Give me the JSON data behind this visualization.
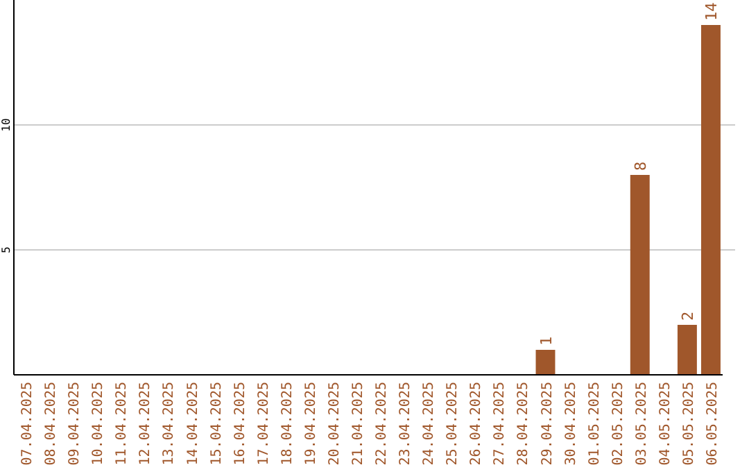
{
  "chart_data": {
    "type": "bar",
    "categories": [
      "07.04.2025",
      "08.04.2025",
      "09.04.2025",
      "10.04.2025",
      "11.04.2025",
      "12.04.2025",
      "13.04.2025",
      "14.04.2025",
      "15.04.2025",
      "16.04.2025",
      "17.04.2025",
      "18.04.2025",
      "19.04.2025",
      "20.04.2025",
      "21.04.2025",
      "22.04.2025",
      "23.04.2025",
      "24.04.2025",
      "25.04.2025",
      "26.04.2025",
      "27.04.2025",
      "28.04.2025",
      "29.04.2025",
      "30.04.2025",
      "01.05.2025",
      "02.05.2025",
      "03.05.2025",
      "04.05.2025",
      "05.05.2025",
      "06.05.2025"
    ],
    "values": [
      0,
      0,
      0,
      0,
      0,
      0,
      0,
      0,
      0,
      0,
      0,
      0,
      0,
      0,
      0,
      0,
      0,
      0,
      0,
      0,
      0,
      0,
      1,
      0,
      0,
      0,
      8,
      0,
      2,
      14
    ],
    "value_labels": [
      null,
      null,
      null,
      null,
      null,
      null,
      null,
      null,
      null,
      null,
      null,
      null,
      null,
      null,
      null,
      null,
      null,
      null,
      null,
      null,
      null,
      null,
      "1",
      null,
      null,
      null,
      "8",
      null,
      "2",
      "14"
    ],
    "color": "#a0572b",
    "ylim": [
      0,
      15
    ],
    "yticks": [
      5,
      10
    ],
    "grid": "y"
  }
}
